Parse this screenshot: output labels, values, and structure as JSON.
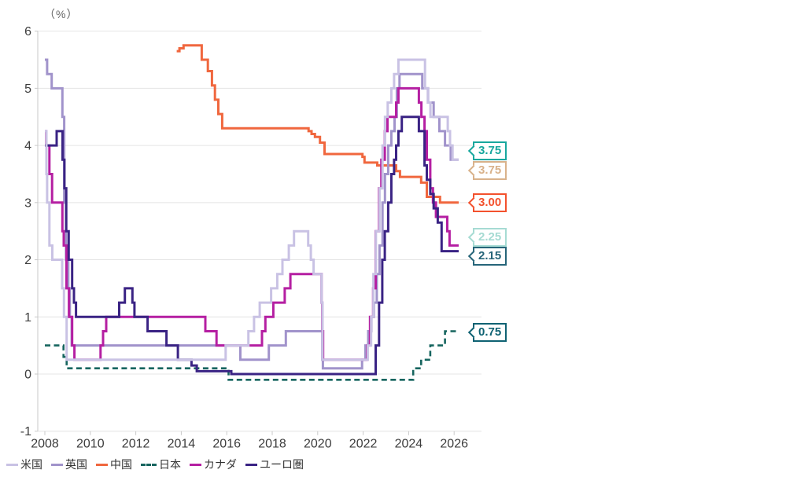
{
  "chart_data": {
    "type": "line",
    "title": "",
    "unit": "（%）",
    "xlabel": "",
    "ylabel": "（%）",
    "ylim": [
      -1,
      6
    ],
    "xlim": [
      2007.7,
      2027.2
    ],
    "x_data_end": 2026.2,
    "grid": "horizontal",
    "x_ticks": [
      "2008",
      "2010",
      "2012",
      "2014",
      "2016",
      "2018",
      "2020",
      "2022",
      "2024",
      "2026"
    ],
    "x_tick_years": [
      2008,
      2010,
      2012,
      2014,
      2016,
      2018,
      2020,
      2022,
      2024,
      2026
    ],
    "y_ticks": [
      "-1",
      "0",
      "1",
      "2",
      "3",
      "4",
      "5",
      "6"
    ],
    "y_tick_values": [
      -1,
      0,
      1,
      2,
      3,
      4,
      5,
      6
    ],
    "axis_color": "#c9c9c9",
    "grid_color": "#e4e4e4",
    "legend_position": "bottom-left",
    "series": [
      {
        "id": "china",
        "name": "中国",
        "color": "#f0673e",
        "dashed": false,
        "width": 3,
        "points": [
          [
            2013.8,
            5.65
          ],
          [
            2013.92,
            5.7
          ],
          [
            2014.1,
            5.75
          ],
          [
            2014.9,
            5.5
          ],
          [
            2015.17,
            5.3
          ],
          [
            2015.35,
            5.05
          ],
          [
            2015.48,
            4.8
          ],
          [
            2015.63,
            4.55
          ],
          [
            2015.8,
            4.3
          ],
          [
            2019.6,
            4.25
          ],
          [
            2019.73,
            4.2
          ],
          [
            2019.88,
            4.15
          ],
          [
            2020.1,
            4.05
          ],
          [
            2020.3,
            3.85
          ],
          [
            2021.97,
            3.8
          ],
          [
            2022.06,
            3.7
          ],
          [
            2022.62,
            3.65
          ],
          [
            2023.45,
            3.55
          ],
          [
            2023.62,
            3.45
          ],
          [
            2024.55,
            3.35
          ],
          [
            2024.8,
            3.1
          ],
          [
            2025.38,
            3.0
          ]
        ],
        "end_value_label": "3.00"
      },
      {
        "id": "japan",
        "name": "日本",
        "color": "#16655f",
        "dashed": true,
        "width": 2.6,
        "points": [
          [
            2008.0,
            0.5
          ],
          [
            2008.82,
            0.3
          ],
          [
            2008.96,
            0.1
          ],
          [
            2016.08,
            -0.1
          ],
          [
            2024.2,
            0.1
          ],
          [
            2024.55,
            0.25
          ],
          [
            2024.95,
            0.5
          ],
          [
            2025.6,
            0.75
          ]
        ],
        "end_value_label": "0.75"
      },
      {
        "id": "uk",
        "name": "英国",
        "color": "#a193cb",
        "dashed": false,
        "width": 3,
        "points": [
          [
            2008.0,
            5.5
          ],
          [
            2008.1,
            5.25
          ],
          [
            2008.3,
            5.0
          ],
          [
            2008.77,
            4.5
          ],
          [
            2008.85,
            3.0
          ],
          [
            2008.93,
            2.0
          ],
          [
            2009.03,
            1.5
          ],
          [
            2009.1,
            1.0
          ],
          [
            2009.18,
            0.5
          ],
          [
            2016.6,
            0.25
          ],
          [
            2017.85,
            0.5
          ],
          [
            2018.6,
            0.75
          ],
          [
            2020.2,
            0.25
          ],
          [
            2020.23,
            0.1
          ],
          [
            2021.95,
            0.25
          ],
          [
            2022.1,
            0.5
          ],
          [
            2022.22,
            0.75
          ],
          [
            2022.36,
            1.0
          ],
          [
            2022.47,
            1.25
          ],
          [
            2022.6,
            1.75
          ],
          [
            2022.72,
            2.25
          ],
          [
            2022.85,
            3.0
          ],
          [
            2022.96,
            3.5
          ],
          [
            2023.1,
            4.0
          ],
          [
            2023.24,
            4.25
          ],
          [
            2023.38,
            4.5
          ],
          [
            2023.48,
            5.0
          ],
          [
            2023.6,
            5.25
          ],
          [
            2024.6,
            5.0
          ],
          [
            2024.85,
            4.75
          ],
          [
            2025.1,
            4.5
          ],
          [
            2025.35,
            4.25
          ],
          [
            2025.6,
            4.0
          ],
          [
            2025.85,
            3.75
          ]
        ],
        "end_value_label": "3.75"
      },
      {
        "id": "canada",
        "name": "カナダ",
        "color": "#b51fa2",
        "dashed": false,
        "width": 3,
        "points": [
          [
            2008.0,
            4.25
          ],
          [
            2008.06,
            4.0
          ],
          [
            2008.2,
            3.5
          ],
          [
            2008.32,
            3.0
          ],
          [
            2008.77,
            2.5
          ],
          [
            2008.83,
            2.25
          ],
          [
            2008.95,
            1.5
          ],
          [
            2009.06,
            1.0
          ],
          [
            2009.2,
            0.5
          ],
          [
            2009.3,
            0.25
          ],
          [
            2010.45,
            0.5
          ],
          [
            2010.56,
            0.75
          ],
          [
            2010.7,
            1.0
          ],
          [
            2015.06,
            0.75
          ],
          [
            2015.55,
            0.5
          ],
          [
            2017.55,
            0.75
          ],
          [
            2017.7,
            1.0
          ],
          [
            2018.05,
            1.25
          ],
          [
            2018.55,
            1.5
          ],
          [
            2018.8,
            1.75
          ],
          [
            2020.17,
            1.25
          ],
          [
            2020.2,
            0.75
          ],
          [
            2020.24,
            0.25
          ],
          [
            2022.18,
            0.5
          ],
          [
            2022.3,
            1.0
          ],
          [
            2022.44,
            1.5
          ],
          [
            2022.55,
            2.5
          ],
          [
            2022.7,
            3.25
          ],
          [
            2022.8,
            3.75
          ],
          [
            2022.95,
            4.25
          ],
          [
            2023.07,
            4.5
          ],
          [
            2023.45,
            4.75
          ],
          [
            2023.55,
            5.0
          ],
          [
            2024.45,
            4.75
          ],
          [
            2024.56,
            4.5
          ],
          [
            2024.7,
            4.25
          ],
          [
            2024.8,
            3.75
          ],
          [
            2024.95,
            3.25
          ],
          [
            2025.07,
            3.0
          ],
          [
            2025.2,
            2.75
          ],
          [
            2025.7,
            2.5
          ],
          [
            2025.8,
            2.25
          ]
        ],
        "end_value_label": "2.25"
      },
      {
        "id": "euro",
        "name": "ユーロ圏",
        "color": "#3a2384",
        "dashed": false,
        "width": 3,
        "points": [
          [
            2008.0,
            4.0
          ],
          [
            2008.52,
            4.25
          ],
          [
            2008.78,
            3.75
          ],
          [
            2008.86,
            3.25
          ],
          [
            2008.94,
            2.5
          ],
          [
            2009.05,
            2.0
          ],
          [
            2009.2,
            1.5
          ],
          [
            2009.28,
            1.25
          ],
          [
            2009.37,
            1.0
          ],
          [
            2011.27,
            1.25
          ],
          [
            2011.52,
            1.5
          ],
          [
            2011.85,
            1.25
          ],
          [
            2011.94,
            1.0
          ],
          [
            2012.52,
            0.75
          ],
          [
            2013.35,
            0.5
          ],
          [
            2013.85,
            0.25
          ],
          [
            2014.45,
            0.15
          ],
          [
            2014.68,
            0.05
          ],
          [
            2016.2,
            0.0
          ],
          [
            2022.55,
            0.5
          ],
          [
            2022.7,
            1.25
          ],
          [
            2022.84,
            2.0
          ],
          [
            2022.95,
            2.5
          ],
          [
            2023.1,
            3.0
          ],
          [
            2023.24,
            3.5
          ],
          [
            2023.36,
            3.75
          ],
          [
            2023.45,
            4.0
          ],
          [
            2023.55,
            4.25
          ],
          [
            2023.7,
            4.5
          ],
          [
            2024.45,
            4.25
          ],
          [
            2024.7,
            3.65
          ],
          [
            2024.8,
            3.4
          ],
          [
            2024.95,
            3.15
          ],
          [
            2025.1,
            2.9
          ],
          [
            2025.28,
            2.65
          ],
          [
            2025.45,
            2.15
          ]
        ],
        "end_value_label": "2.15"
      },
      {
        "id": "us",
        "name": "米国",
        "color": "#c9c2e4",
        "dashed": false,
        "width": 3,
        "points": [
          [
            2008.0,
            4.25
          ],
          [
            2008.07,
            3.5
          ],
          [
            2008.1,
            3.0
          ],
          [
            2008.2,
            2.25
          ],
          [
            2008.33,
            2.0
          ],
          [
            2008.76,
            1.5
          ],
          [
            2008.84,
            1.0
          ],
          [
            2008.96,
            0.25
          ],
          [
            2015.95,
            0.5
          ],
          [
            2016.95,
            0.75
          ],
          [
            2017.2,
            1.0
          ],
          [
            2017.45,
            1.25
          ],
          [
            2017.95,
            1.5
          ],
          [
            2018.22,
            1.75
          ],
          [
            2018.45,
            2.0
          ],
          [
            2018.73,
            2.25
          ],
          [
            2018.96,
            2.5
          ],
          [
            2019.58,
            2.25
          ],
          [
            2019.7,
            2.0
          ],
          [
            2019.82,
            1.75
          ],
          [
            2020.17,
            1.25
          ],
          [
            2020.21,
            0.25
          ],
          [
            2022.2,
            0.5
          ],
          [
            2022.35,
            1.0
          ],
          [
            2022.45,
            1.75
          ],
          [
            2022.56,
            2.5
          ],
          [
            2022.72,
            3.25
          ],
          [
            2022.85,
            4.0
          ],
          [
            2022.96,
            4.5
          ],
          [
            2023.08,
            4.75
          ],
          [
            2023.24,
            5.0
          ],
          [
            2023.36,
            5.25
          ],
          [
            2023.55,
            5.5
          ],
          [
            2024.72,
            5.0
          ],
          [
            2024.86,
            4.75
          ],
          [
            2024.96,
            4.5
          ],
          [
            2025.72,
            4.25
          ],
          [
            2025.82,
            4.0
          ],
          [
            2025.93,
            3.75
          ]
        ],
        "end_value_label": "3.75"
      }
    ],
    "legend": [
      {
        "label": "米国",
        "series_id": "us"
      },
      {
        "label": "英国",
        "series_id": "uk"
      },
      {
        "label": "中国",
        "series_id": "china"
      },
      {
        "label": "日本",
        "series_id": "japan"
      },
      {
        "label": "カナダ",
        "series_id": "canada"
      },
      {
        "label": "ユーロ圏",
        "series_id": "euro"
      }
    ],
    "callouts": [
      {
        "label": "3.75",
        "value": 3.75,
        "color": "#18a79e",
        "dy": -11
      },
      {
        "label": "3.75",
        "value": 3.75,
        "color": "#d9b28b",
        "dy": 14
      },
      {
        "label": "3.00",
        "value": 3.0,
        "color": "#f3512d",
        "dy": 0
      },
      {
        "label": "2.25",
        "value": 2.25,
        "color": "#a6dbd3",
        "dy": -10
      },
      {
        "label": "2.15",
        "value": 2.15,
        "color": "#266579",
        "dy": 6
      },
      {
        "label": "0.75",
        "value": 0.75,
        "color": "#0f6273",
        "dy": 2
      }
    ]
  }
}
